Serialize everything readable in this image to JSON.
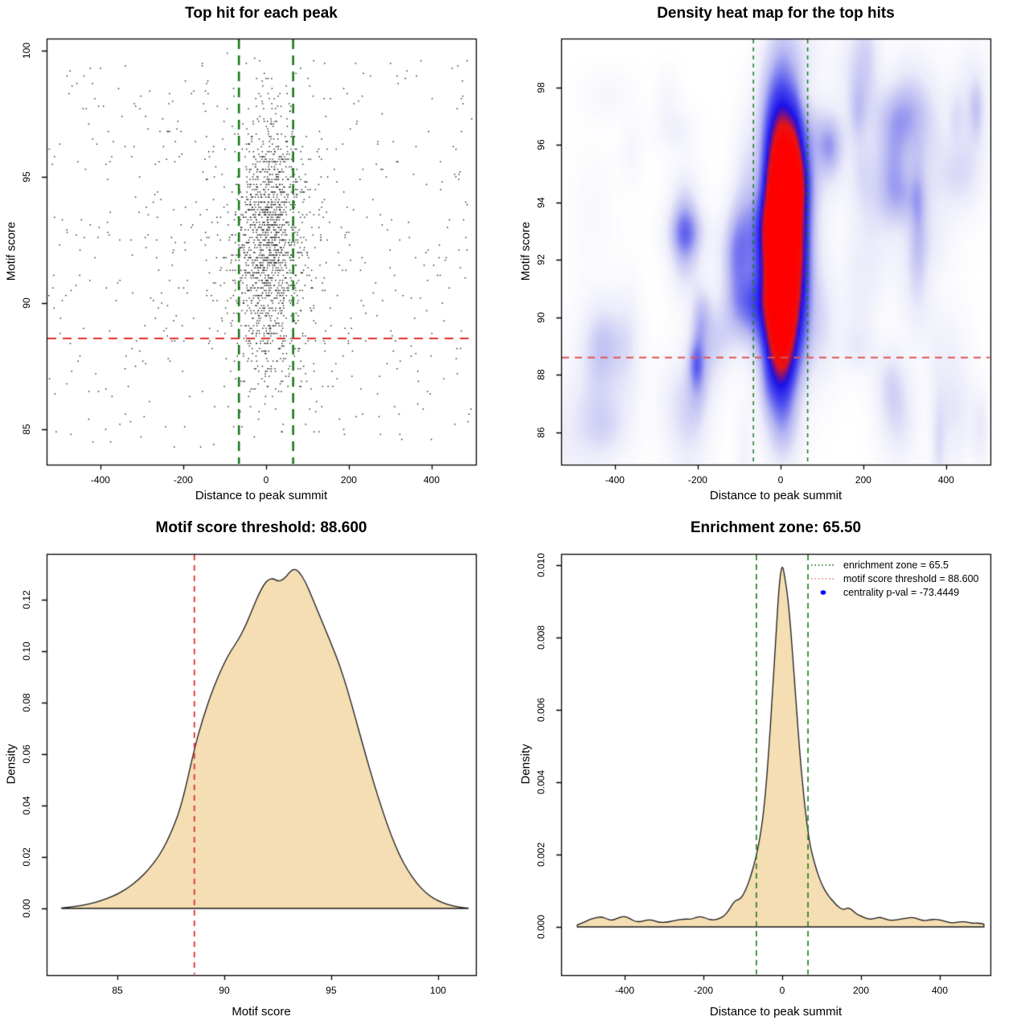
{
  "colors": {
    "background": "#ffffff",
    "box_stroke": "#000000",
    "point_color": "#161616",
    "green_line": "#1a7a1c",
    "red_line": "#df2f2f",
    "red_line_soft": "#e05555",
    "legend_red": "#f08080",
    "legend_blue": "#0008ff",
    "wheat_fill": "#f5deb3",
    "curve_stroke": "#1a1a1a"
  },
  "chart_data": [
    {
      "type": "scatter",
      "title": "Top hit for each peak",
      "xlabel": "Distance to peak summit",
      "ylabel": "Motif score",
      "xlim": [
        -530,
        507
      ],
      "ylim": [
        83.6,
        100.48
      ],
      "x_ticks": [
        -400,
        -200,
        0,
        200,
        400
      ],
      "x_tick_labels": [
        "-400",
        "-200",
        "0",
        "200",
        "400"
      ],
      "y_ticks": [
        85,
        90,
        95,
        100
      ],
      "y_tick_labels": [
        "85",
        "90",
        "95",
        "100"
      ],
      "grid": false,
      "vlines": {
        "x": [
          -65.5,
          65.5
        ],
        "width": 2.6,
        "dash": [
          12,
          8
        ]
      },
      "hline": {
        "y": 88.6,
        "width": 2.2,
        "dash": [
          11,
          8
        ]
      },
      "points": {
        "seed": 11,
        "groups": [
          {
            "kind": "gauss",
            "n": 1400,
            "x_mean": 8,
            "x_sd": 40,
            "y_mean": 92.4,
            "y_sd": 2.6,
            "y_quant": 0.1
          },
          {
            "kind": "gauss",
            "n": 280,
            "x_mean": 0,
            "x_sd": 160,
            "y_mean": 92.2,
            "y_sd": 3.2,
            "y_quant": 0.1
          },
          {
            "kind": "uniform",
            "n": 430,
            "x_min": -525,
            "x_max": 500,
            "y_min": 84.3,
            "y_max": 99.6,
            "y_quant": 0.1
          }
        ],
        "y_clip": [
          84.2,
          99.9
        ]
      }
    },
    {
      "type": "heatmap",
      "title": "Density heat map for the top hits",
      "xlabel": "Distance to peak summit",
      "ylabel": "Motif score",
      "xlim": [
        -530,
        507
      ],
      "ylim": [
        84.87,
        99.7
      ],
      "x_ticks": [
        -400,
        -200,
        0,
        200,
        400
      ],
      "x_tick_labels": [
        "-400",
        "-200",
        "0",
        "200",
        "400"
      ],
      "y_ticks": [
        86,
        88,
        90,
        92,
        94,
        96,
        98
      ],
      "y_tick_labels": [
        "86",
        "88",
        "90",
        "92",
        "94",
        "96",
        "98"
      ],
      "vlines": {
        "x": [
          -65.5,
          65.5
        ],
        "width": 1.5,
        "dash": [
          5,
          5
        ]
      },
      "hline": {
        "y": 88.6,
        "width": 2,
        "dash": [
          9,
          7
        ]
      },
      "field": {
        "seed": 7,
        "main": [
          {
            "cx": 8,
            "cy": 92.6,
            "sx": 36,
            "sy": 2.7,
            "amp": 1.0
          },
          {
            "cx": 4,
            "cy": 94.6,
            "sx": 30,
            "sy": 3.4,
            "amp": 0.5
          },
          {
            "cx": 0,
            "cy": 89.6,
            "sx": 30,
            "sy": 2.0,
            "amp": 0.35
          }
        ],
        "speckles": {
          "count": 70,
          "x_min": -530,
          "x_max": 507,
          "y_min": 84.9,
          "y_max": 99.6,
          "sx_min": 12,
          "sx_max": 46,
          "sy_min": 0.5,
          "sy_max": 1.7,
          "amp_min": 0.04,
          "amp_max": 0.14
        },
        "strong_speckles": {
          "count": 9,
          "x_min": -300,
          "x_max": 300,
          "y_min": 85.5,
          "y_max": 99.2,
          "sx_min": 15,
          "sx_max": 40,
          "sy_min": 0.7,
          "sy_max": 1.6,
          "amp_min": 0.13,
          "amp_max": 0.2
        }
      },
      "colormap": [
        {
          "t": 0.0,
          "c": "#ffffff"
        },
        {
          "t": 0.12,
          "c": "#ededfb"
        },
        {
          "t": 0.28,
          "c": "#b9b9f2"
        },
        {
          "t": 0.46,
          "c": "#5050ef"
        },
        {
          "t": 0.62,
          "c": "#1a10e8"
        },
        {
          "t": 0.8,
          "c": "#e81414"
        },
        {
          "t": 1.0,
          "c": "#ff0000"
        }
      ]
    },
    {
      "type": "density",
      "title": "Motif score threshold: 88.600",
      "xlabel": "Motif score",
      "ylabel": "Density",
      "xlim": [
        81.69,
        101.77
      ],
      "ylim": [
        -0.02594,
        0.13781
      ],
      "x_ticks": [
        85,
        90,
        95,
        100
      ],
      "x_tick_labels": [
        "85",
        "90",
        "95",
        "100"
      ],
      "y_ticks": [
        0,
        0.02,
        0.04,
        0.06,
        0.08,
        0.1,
        0.12
      ],
      "y_tick_labels": [
        "0.00",
        "0.02",
        "0.04",
        "0.06",
        "0.08",
        "0.10",
        "0.12"
      ],
      "vline_red": {
        "x": 88.6,
        "width": 1.8,
        "dash": [
          7,
          6
        ]
      },
      "curve": [
        [
          82.4,
          0.0002
        ],
        [
          83,
          0.0007
        ],
        [
          83.5,
          0.0014
        ],
        [
          84,
          0.0024
        ],
        [
          84.5,
          0.0038
        ],
        [
          85,
          0.0055
        ],
        [
          85.5,
          0.008
        ],
        [
          86,
          0.0112
        ],
        [
          86.5,
          0.0155
        ],
        [
          87,
          0.021
        ],
        [
          87.5,
          0.029
        ],
        [
          88,
          0.04
        ],
        [
          88.6,
          0.062
        ],
        [
          89,
          0.074
        ],
        [
          89.5,
          0.086
        ],
        [
          90,
          0.0955
        ],
        [
          90.3,
          0.1
        ],
        [
          90.7,
          0.105
        ],
        [
          91,
          0.11
        ],
        [
          91.3,
          0.116
        ],
        [
          91.6,
          0.122
        ],
        [
          91.9,
          0.1265
        ],
        [
          92.1,
          0.128
        ],
        [
          92.3,
          0.1282
        ],
        [
          92.5,
          0.1272
        ],
        [
          92.7,
          0.1275
        ],
        [
          92.9,
          0.129
        ],
        [
          93.1,
          0.1312
        ],
        [
          93.3,
          0.132
        ],
        [
          93.5,
          0.1308
        ],
        [
          93.8,
          0.127
        ],
        [
          94.1,
          0.121
        ],
        [
          94.5,
          0.113
        ],
        [
          95,
          0.103
        ],
        [
          95.4,
          0.0945
        ],
        [
          95.8,
          0.084
        ],
        [
          96.2,
          0.072
        ],
        [
          96.6,
          0.06
        ],
        [
          97,
          0.0485
        ],
        [
          97.4,
          0.038
        ],
        [
          97.8,
          0.0285
        ],
        [
          98.2,
          0.0205
        ],
        [
          98.6,
          0.0145
        ],
        [
          99,
          0.0098
        ],
        [
          99.4,
          0.0062
        ],
        [
          99.8,
          0.0038
        ],
        [
          100.2,
          0.0022
        ],
        [
          100.6,
          0.0012
        ],
        [
          101,
          0.0005
        ],
        [
          101.4,
          0.0001
        ]
      ]
    },
    {
      "type": "density",
      "title": "Enrichment zone: 65.50",
      "xlabel": "Distance to peak summit",
      "ylabel": "Density",
      "xlim": [
        -561.2,
        528.6
      ],
      "ylim": [
        -0.001333,
        0.010311
      ],
      "x_ticks": [
        -400,
        -200,
        0,
        200,
        400
      ],
      "x_tick_labels": [
        "-400",
        "-200",
        "0",
        "200",
        "400"
      ],
      "y_ticks": [
        0,
        0.002,
        0.004,
        0.006,
        0.008,
        0.01
      ],
      "y_tick_labels": [
        "0.000",
        "0.002",
        "0.004",
        "0.006",
        "0.008",
        "0.010"
      ],
      "vlines_green": {
        "x": [
          -65.5,
          65.5
        ],
        "width": 1.6,
        "dash": [
          7,
          5
        ]
      },
      "curve": [
        [
          -520,
          6e-05
        ],
        [
          -505,
          0.00012
        ],
        [
          -490,
          0.0002
        ],
        [
          -472,
          0.00026
        ],
        [
          -458,
          0.00028
        ],
        [
          -445,
          0.00022
        ],
        [
          -432,
          0.00018
        ],
        [
          -418,
          0.00024
        ],
        [
          -402,
          0.0003
        ],
        [
          -388,
          0.00024
        ],
        [
          -372,
          0.00014
        ],
        [
          -356,
          0.00015
        ],
        [
          -342,
          0.0002
        ],
        [
          -326,
          0.00018
        ],
        [
          -310,
          0.00012
        ],
        [
          -294,
          0.00013
        ],
        [
          -278,
          0.00016
        ],
        [
          -262,
          0.0002
        ],
        [
          -246,
          0.00022
        ],
        [
          -230,
          0.00021
        ],
        [
          -216,
          0.00028
        ],
        [
          -202,
          0.00028
        ],
        [
          -188,
          0.00021
        ],
        [
          -174,
          0.00019
        ],
        [
          -160,
          0.00023
        ],
        [
          -148,
          0.0003
        ],
        [
          -138,
          0.00042
        ],
        [
          -128,
          0.0006
        ],
        [
          -120,
          0.00072
        ],
        [
          -112,
          0.00075
        ],
        [
          -104,
          0.0008
        ],
        [
          -96,
          0.00095
        ],
        [
          -88,
          0.00115
        ],
        [
          -80,
          0.0014
        ],
        [
          -72,
          0.0017
        ],
        [
          -64,
          0.00205
        ],
        [
          -56,
          0.0025
        ],
        [
          -48,
          0.0031
        ],
        [
          -40,
          0.004
        ],
        [
          -32,
          0.0052
        ],
        [
          -24,
          0.0066
        ],
        [
          -16,
          0.008
        ],
        [
          -10,
          0.0091
        ],
        [
          -6,
          0.0096
        ],
        [
          -2,
          0.00993
        ],
        [
          2,
          0.00995
        ],
        [
          6,
          0.0097
        ],
        [
          12,
          0.0093
        ],
        [
          18,
          0.0087
        ],
        [
          24,
          0.0079
        ],
        [
          30,
          0.007
        ],
        [
          36,
          0.0061
        ],
        [
          42,
          0.0052
        ],
        [
          48,
          0.0044
        ],
        [
          54,
          0.0037
        ],
        [
          60,
          0.0031
        ],
        [
          66,
          0.0026
        ],
        [
          72,
          0.0022
        ],
        [
          80,
          0.00185
        ],
        [
          88,
          0.00155
        ],
        [
          96,
          0.0013
        ],
        [
          104,
          0.0011
        ],
        [
          112,
          0.00095
        ],
        [
          120,
          0.00082
        ],
        [
          130,
          0.0007
        ],
        [
          140,
          0.00058
        ],
        [
          150,
          0.0005
        ],
        [
          158,
          0.00048
        ],
        [
          166,
          0.00053
        ],
        [
          174,
          0.0005
        ],
        [
          182,
          0.00042
        ],
        [
          190,
          0.00035
        ],
        [
          200,
          0.0003
        ],
        [
          212,
          0.00024
        ],
        [
          224,
          0.00021
        ],
        [
          236,
          0.00024
        ],
        [
          248,
          0.00027
        ],
        [
          260,
          0.00023
        ],
        [
          274,
          0.00018
        ],
        [
          288,
          0.00019
        ],
        [
          302,
          0.00022
        ],
        [
          316,
          0.00024
        ],
        [
          330,
          0.00027
        ],
        [
          344,
          0.00022
        ],
        [
          358,
          0.00017
        ],
        [
          372,
          0.00019
        ],
        [
          386,
          0.00021
        ],
        [
          400,
          0.0002
        ],
        [
          414,
          0.00015
        ],
        [
          428,
          0.00011
        ],
        [
          442,
          0.00012
        ],
        [
          456,
          0.00015
        ],
        [
          470,
          0.00013
        ],
        [
          484,
          0.0001
        ],
        [
          498,
          0.00011
        ],
        [
          512,
          8e-05
        ]
      ],
      "legend": {
        "entries": [
          {
            "swatch": "dotted-line",
            "color_key": "green_line",
            "label": "enrichment zone = 65.5"
          },
          {
            "swatch": "dotted-line",
            "color_key": "legend_red",
            "label": "motif score threshold = 88.600"
          },
          {
            "swatch": "dot",
            "color_key": "legend_blue",
            "label": "centrality p-val = -73.4449"
          }
        ]
      }
    }
  ]
}
